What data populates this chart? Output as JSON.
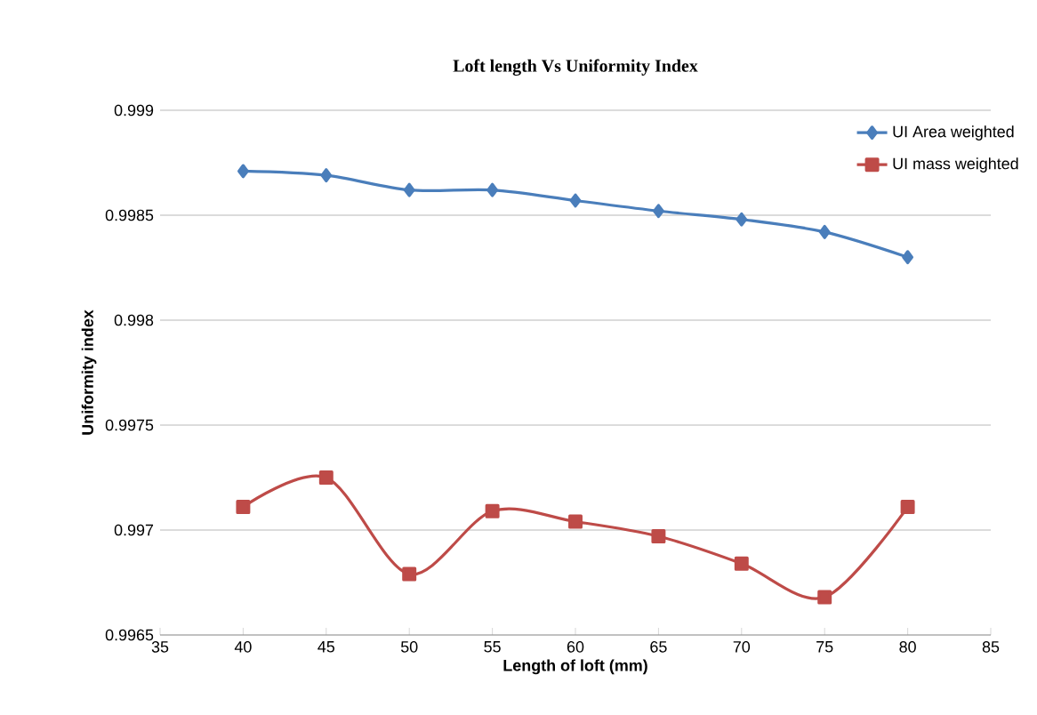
{
  "chart_data": {
    "type": "line",
    "title": "Loft length Vs Uniformity Index",
    "xlabel": "Length of loft (mm)",
    "ylabel": "Uniformity index",
    "x": [
      40,
      45,
      50,
      55,
      60,
      65,
      70,
      75,
      80
    ],
    "series": [
      {
        "name": "UI Area weighted",
        "color": "#4a7ebb",
        "marker": "diamond",
        "values": [
          0.99871,
          0.99869,
          0.99862,
          0.99862,
          0.99857,
          0.99852,
          0.99848,
          0.99842,
          0.9983
        ]
      },
      {
        "name": "UI mass weighted",
        "color": "#be4b48",
        "marker": "square",
        "values": [
          0.99711,
          0.99725,
          0.99679,
          0.99709,
          0.99704,
          0.99697,
          0.99684,
          0.99668,
          0.99711
        ]
      }
    ],
    "xlim": [
      35,
      85
    ],
    "xticks": [
      35,
      40,
      45,
      50,
      55,
      60,
      65,
      70,
      75,
      80,
      85
    ],
    "ylim": [
      0.9965,
      0.999
    ],
    "yticks": [
      0.9965,
      0.997,
      0.9975,
      0.998,
      0.9985,
      0.999
    ],
    "grid": "y",
    "legend": "top right",
    "line_style": "solid"
  }
}
